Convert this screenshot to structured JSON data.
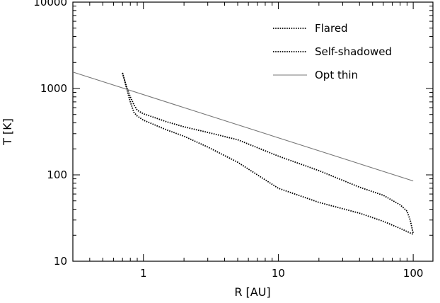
{
  "chart_data": {
    "type": "line",
    "title": "",
    "xlabel": "R [AU]",
    "ylabel": "T [K]",
    "xscale": "log",
    "yscale": "log",
    "xlim": [
      0.3,
      140
    ],
    "ylim": [
      10,
      10000
    ],
    "x_ticks": [
      1,
      10,
      100
    ],
    "x_tick_labels": [
      "1",
      "10",
      "100"
    ],
    "y_ticks": [
      10,
      100,
      1000,
      10000
    ],
    "y_tick_labels": [
      "10",
      "100",
      "1000",
      "10000"
    ],
    "grid": false,
    "legend_position": "top-right",
    "series": [
      {
        "name": "Flared",
        "style": "dotted",
        "color": "#000000",
        "x": [
          0.7,
          0.72,
          0.75,
          0.8,
          0.85,
          0.9,
          1.0,
          1.5,
          2,
          3,
          5,
          10,
          20,
          40,
          60,
          80,
          90,
          95,
          100
        ],
        "y": [
          1500,
          1300,
          1050,
          800,
          650,
          560,
          510,
          410,
          360,
          310,
          255,
          165,
          112,
          72,
          58,
          45,
          38,
          30,
          21
        ]
      },
      {
        "name": "Self-shadowed",
        "style": "dotted",
        "color": "#000000",
        "x": [
          0.7,
          0.72,
          0.75,
          0.8,
          0.85,
          0.9,
          1.0,
          1.5,
          2,
          3,
          5,
          10,
          20,
          40,
          60,
          80,
          100
        ],
        "y": [
          1520,
          1300,
          1000,
          700,
          530,
          480,
          430,
          330,
          280,
          210,
          140,
          70,
          48,
          36,
          29,
          24,
          20.5
        ]
      },
      {
        "name": "Opt thin",
        "style": "solid",
        "color": "#777777",
        "x": [
          0.3,
          100
        ],
        "y": [
          1550,
          85
        ]
      }
    ]
  }
}
